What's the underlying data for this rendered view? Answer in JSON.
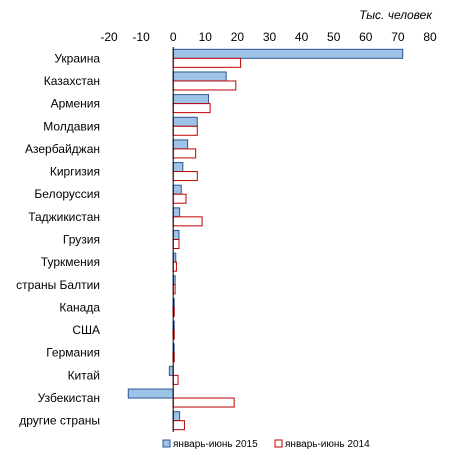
{
  "chart_data": {
    "type": "bar",
    "orientation": "horizontal",
    "unit_label": "Тыс. человек",
    "xlim": [
      -20,
      80
    ],
    "x_ticks": [
      -20,
      -10,
      0,
      10,
      20,
      30,
      40,
      50,
      60,
      70,
      80
    ],
    "categories": [
      "Украина",
      "Казахстан",
      "Армения",
      "Молдавия",
      "Азербайджан",
      "Киргизия",
      "Белоруссия",
      "Таджикистан",
      "Грузия",
      "Туркмения",
      "страны Балтии",
      "Канада",
      "США",
      "Германия",
      "Китай",
      "Узбекистан",
      "другие страны"
    ],
    "series": [
      {
        "name": "январь-июнь 2015",
        "color": "#9DC3E6",
        "edge_color": "#2F5597",
        "values": [
          71.5,
          16.5,
          11,
          7.5,
          4.5,
          3,
          2.5,
          2,
          1.8,
          0.8,
          0.6,
          0.2,
          0.2,
          0.2,
          -1.2,
          -14,
          2
        ]
      },
      {
        "name": "январь-июнь 2014",
        "color": "#ffffff",
        "edge_color": "#C00000",
        "values": [
          21,
          19.5,
          11.5,
          7.5,
          7,
          7.5,
          4,
          9,
          1.8,
          1,
          0.6,
          0.3,
          0.3,
          0.3,
          1.5,
          19,
          3.5
        ]
      }
    ],
    "legend_position": "bottom",
    "grid": false
  }
}
